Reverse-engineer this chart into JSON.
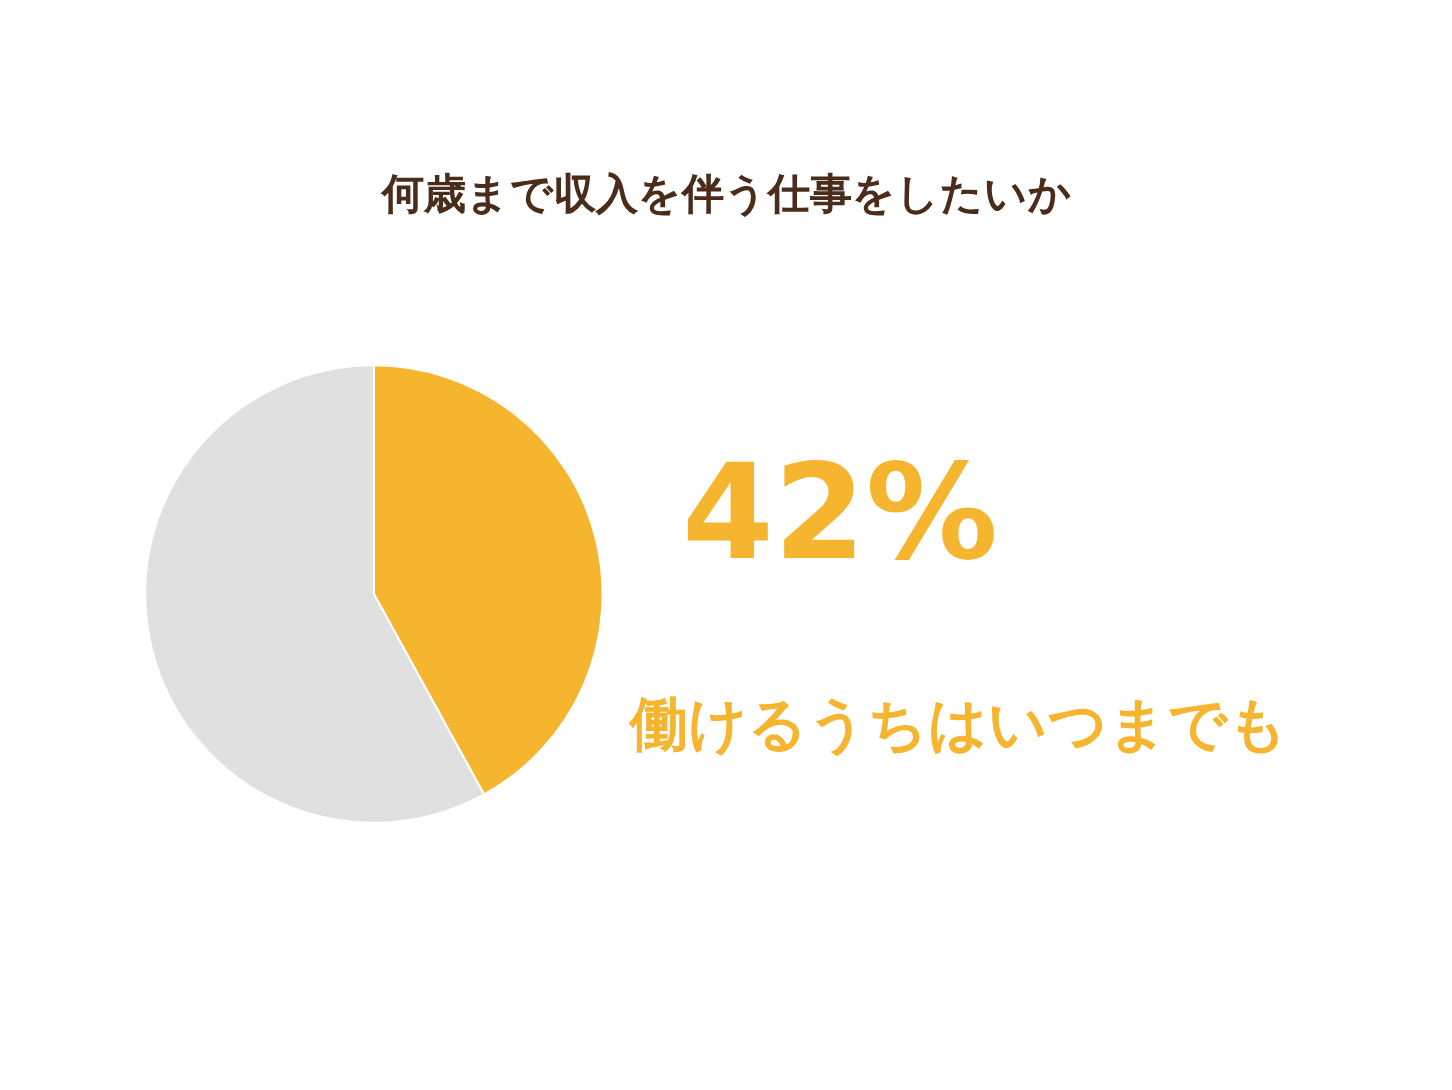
{
  "chart_data": {
    "type": "pie",
    "title": "何歳まで収入を伴う仕事をしたいか",
    "categories": [
      "働けるうちはいつまでも",
      null
    ],
    "values": [
      42,
      58
    ],
    "colors": [
      "#f5b52e",
      "#e0e0e0"
    ],
    "value_labels": [
      "42%",
      null
    ],
    "legend": false
  }
}
